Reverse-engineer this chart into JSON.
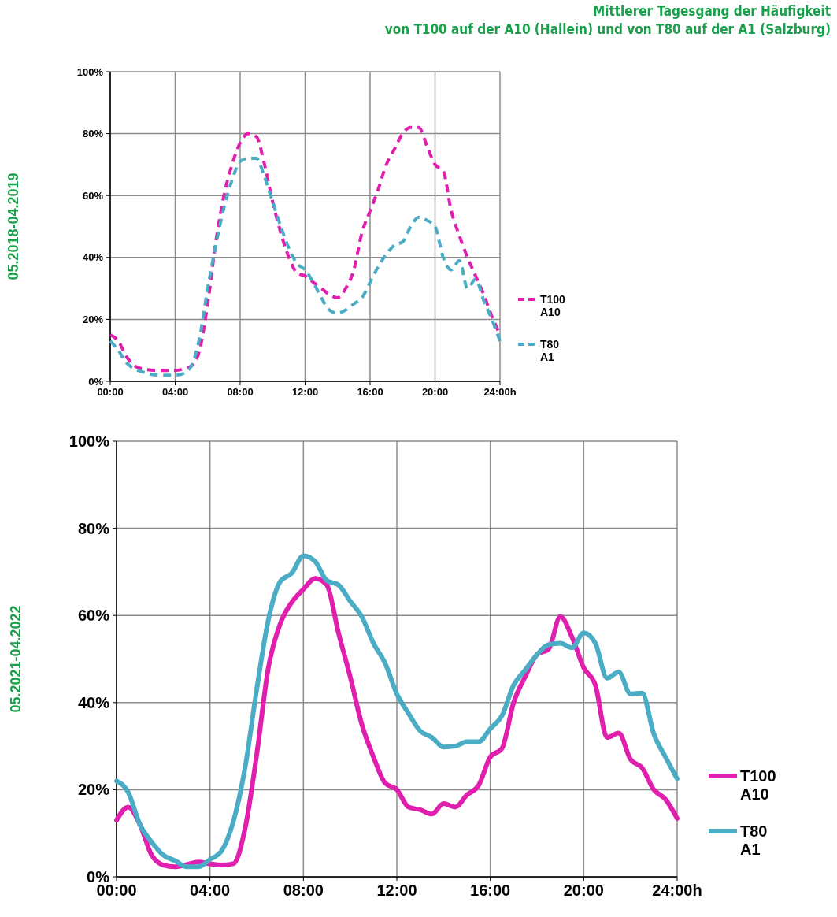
{
  "chart_data": [
    {
      "type": "line",
      "title": "Mittlerer Tagesgang der Häufigkeit\nvon T100 auf der A10 (Hallein) und von T80 auf der A1 (Salzburg)",
      "ylabel": "05.2018-04.2019",
      "line_style": "dashed",
      "legend": "right",
      "grid": true,
      "x": [
        0,
        0.5,
        1,
        1.5,
        2,
        3,
        4,
        4.5,
        5,
        5.5,
        6,
        6.5,
        7,
        7.5,
        8,
        8.5,
        9,
        9.5,
        10,
        10.5,
        11,
        11.5,
        12,
        12.5,
        13,
        13.5,
        14,
        14.5,
        15,
        15.5,
        16,
        16.5,
        17,
        17.5,
        18,
        18.5,
        19,
        19.5,
        20,
        20.5,
        21,
        21.5,
        22,
        22.5,
        23,
        23.5,
        24
      ],
      "xlim": [
        0,
        24
      ],
      "xticks": [
        {
          "value": 0,
          "label": "00:00"
        },
        {
          "value": 4,
          "label": "04:00"
        },
        {
          "value": 8,
          "label": "08:00"
        },
        {
          "value": 12,
          "label": "12:00"
        },
        {
          "value": 16,
          "label": "16:00"
        },
        {
          "value": 20,
          "label": "20:00"
        },
        {
          "value": 24,
          "label": "24:00h"
        }
      ],
      "ylim": [
        0,
        100
      ],
      "yticks": [
        {
          "value": 0,
          "label": "0%"
        },
        {
          "value": 20,
          "label": "20%"
        },
        {
          "value": 40,
          "label": "40%"
        },
        {
          "value": 60,
          "label": "60%"
        },
        {
          "value": 80,
          "label": "80%"
        },
        {
          "value": 100,
          "label": "100%"
        }
      ],
      "series": [
        {
          "name": "T100\nA10",
          "color": "#e01fae",
          "values": [
            15,
            13,
            8,
            5,
            4,
            3.5,
            3.5,
            4,
            5,
            10,
            25,
            45,
            60,
            70,
            77,
            80,
            79,
            70,
            58,
            48,
            40,
            35,
            34,
            32,
            30,
            28,
            27,
            30,
            36,
            48,
            55,
            62,
            70,
            75,
            80,
            82,
            82,
            76,
            70,
            68,
            55,
            47,
            40,
            34,
            28,
            21,
            15
          ]
        },
        {
          "name": "T80\nA1",
          "color": "#4bacc6",
          "values": [
            13,
            10,
            6,
            4,
            3,
            2,
            2,
            2.5,
            5,
            14,
            30,
            44,
            56,
            65,
            71,
            72,
            72,
            66,
            58,
            50,
            43,
            38,
            36,
            32,
            27,
            23,
            22,
            23,
            25,
            27,
            32,
            37,
            41,
            44,
            45,
            50,
            53,
            52,
            50,
            40,
            36,
            39,
            30,
            33,
            26,
            20,
            13
          ]
        }
      ]
    },
    {
      "type": "line",
      "ylabel": "05.2021-04.2022",
      "line_style": "solid",
      "legend": "right",
      "grid": true,
      "x": [
        0,
        0.5,
        1,
        1.5,
        2,
        2.5,
        3,
        3.5,
        4,
        4.5,
        5,
        5.5,
        6,
        6.5,
        7,
        7.5,
        8,
        8.5,
        9,
        9.5,
        10,
        10.5,
        11,
        11.5,
        12,
        12.5,
        13,
        13.5,
        14,
        14.5,
        15,
        15.5,
        16,
        16.5,
        17,
        17.5,
        18,
        18.5,
        19,
        19.5,
        20,
        20.5,
        21,
        21.5,
        22,
        22.5,
        23,
        23.5,
        24
      ],
      "xlim": [
        0,
        24
      ],
      "xticks": [
        {
          "value": 0,
          "label": "00:00"
        },
        {
          "value": 4,
          "label": "04:00"
        },
        {
          "value": 8,
          "label": "08:00"
        },
        {
          "value": 12,
          "label": "12:00"
        },
        {
          "value": 16,
          "label": "16:00"
        },
        {
          "value": 20,
          "label": "20:00"
        },
        {
          "value": 24,
          "label": "24:00h"
        }
      ],
      "ylim": [
        0,
        100
      ],
      "yticks": [
        {
          "value": 0,
          "label": "0%"
        },
        {
          "value": 20,
          "label": "20%"
        },
        {
          "value": 40,
          "label": "40%"
        },
        {
          "value": 60,
          "label": "60%"
        },
        {
          "value": 80,
          "label": "80%"
        },
        {
          "value": 100,
          "label": "100%"
        }
      ],
      "series": [
        {
          "name": "T100\nA10",
          "color": "#e01fae",
          "values": [
            13,
            16,
            12,
            5,
            2.7,
            2.3,
            2.8,
            3.4,
            3,
            2.7,
            3,
            11,
            28,
            48,
            58,
            63,
            66,
            68.5,
            67,
            56,
            46,
            35,
            27.5,
            21.5,
            20,
            16,
            15.4,
            14.4,
            16.8,
            16,
            18.8,
            21,
            27.5,
            29.5,
            40,
            46,
            51,
            52.3,
            59.7,
            55,
            48,
            44,
            32,
            33,
            27,
            25,
            20,
            17.8,
            13.4
          ]
        },
        {
          "name": "T80\nA1",
          "color": "#4bacc6",
          "values": [
            22,
            19.4,
            12,
            8,
            5,
            3.7,
            2.3,
            2.3,
            4,
            6,
            12.7,
            25,
            43,
            59,
            67.7,
            69.7,
            73.7,
            72.4,
            68,
            67,
            63.3,
            59.7,
            53.6,
            49,
            42,
            37.5,
            33.5,
            32,
            29.8,
            30,
            31,
            31,
            34,
            37,
            44,
            47.5,
            51,
            53.3,
            53.6,
            52.6,
            56,
            53.6,
            45.6,
            47,
            42,
            42.2,
            32.8,
            27.5,
            22.5
          ]
        }
      ]
    }
  ]
}
